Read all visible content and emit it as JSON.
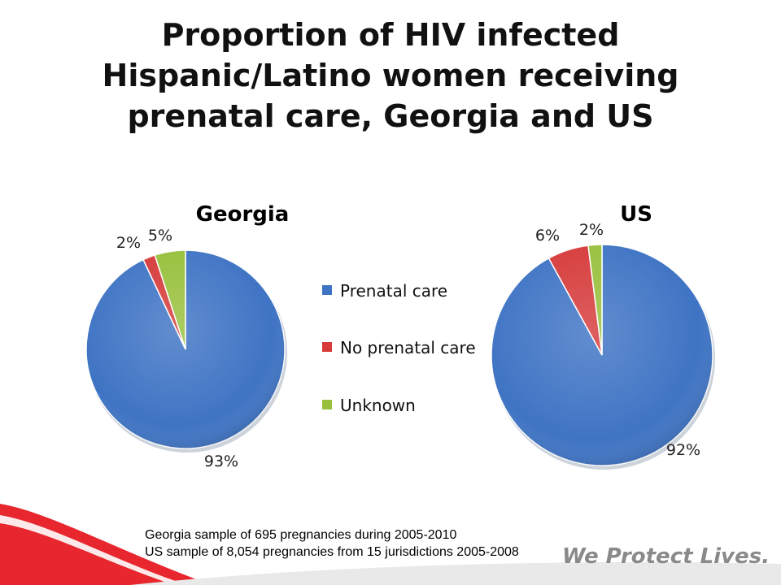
{
  "slide": {
    "title_lines": [
      "Proportion of HIV infected",
      "Hispanic/Latino  women receiving",
      "prenatal care, Georgia and US"
    ],
    "footnote_lines": [
      "Georgia sample of 695 pregnancies during 2005-2010",
      "US sample of 8,054 pregnancies from 15 jurisdictions 2005-2008"
    ],
    "tagline": "We Protect Lives.",
    "accent_color": "#e8262e"
  },
  "chart_data": [
    {
      "type": "pie",
      "title": "Georgia",
      "categories": [
        "Prenatal care",
        "No prenatal care",
        "Unknown"
      ],
      "values": [
        93,
        2,
        5
      ],
      "labels": [
        "93%",
        "2%",
        "5%"
      ],
      "colors": [
        "#3f74c4",
        "#d63a3a",
        "#98c03c"
      ],
      "legend": "center"
    },
    {
      "type": "pie",
      "title": "US",
      "categories": [
        "Prenatal care",
        "No prenatal care",
        "Unknown"
      ],
      "values": [
        92,
        6,
        2
      ],
      "labels": [
        "92%",
        "6%",
        "2%"
      ],
      "colors": [
        "#3f74c4",
        "#d63a3a",
        "#98c03c"
      ],
      "legend": "center"
    }
  ],
  "legend": {
    "items": [
      {
        "label": "Prenatal care",
        "color": "#3f74c4"
      },
      {
        "label": "No prenatal care",
        "color": "#d63a3a"
      },
      {
        "label": "Unknown",
        "color": "#98c03c"
      }
    ]
  }
}
